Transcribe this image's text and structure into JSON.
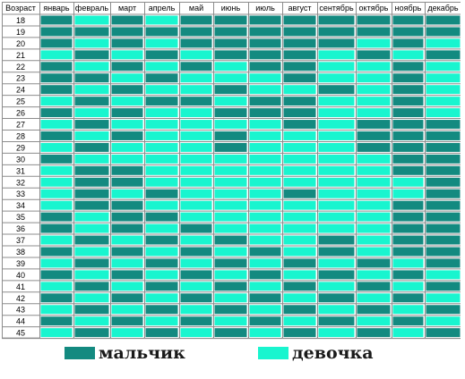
{
  "chart_data": {
    "type": "heatmap",
    "corner_label": "Возраст",
    "months": [
      "январь",
      "февраль",
      "март",
      "апрель",
      "май",
      "июнь",
      "июль",
      "август",
      "сентябрь",
      "октябрь",
      "ноябрь",
      "декабрь"
    ],
    "ages": [
      "18",
      "19",
      "20",
      "21",
      "22",
      "23",
      "24",
      "25",
      "26",
      "27",
      "28",
      "29",
      "30",
      "31",
      "32",
      "33",
      "34",
      "35",
      "36",
      "37",
      "38",
      "39",
      "40",
      "41",
      "42",
      "43",
      "44",
      "45"
    ],
    "value_meaning": {
      "1": "мальчик",
      "0": "девочка"
    },
    "values": [
      [
        1,
        0,
        1,
        0,
        1,
        1,
        1,
        1,
        1,
        1,
        1,
        1
      ],
      [
        1,
        1,
        1,
        1,
        1,
        1,
        1,
        1,
        1,
        1,
        1,
        1
      ],
      [
        1,
        0,
        1,
        0,
        1,
        1,
        1,
        1,
        1,
        0,
        1,
        0
      ],
      [
        0,
        1,
        0,
        1,
        0,
        1,
        1,
        1,
        0,
        1,
        0,
        1
      ],
      [
        1,
        0,
        1,
        0,
        1,
        0,
        1,
        1,
        0,
        0,
        1,
        0
      ],
      [
        1,
        1,
        0,
        1,
        0,
        0,
        0,
        1,
        0,
        0,
        1,
        0
      ],
      [
        1,
        0,
        1,
        0,
        0,
        1,
        0,
        0,
        1,
        0,
        1,
        0
      ],
      [
        0,
        1,
        0,
        1,
        1,
        0,
        1,
        1,
        0,
        0,
        1,
        0
      ],
      [
        1,
        0,
        1,
        0,
        0,
        1,
        1,
        1,
        0,
        0,
        1,
        0
      ],
      [
        0,
        1,
        0,
        0,
        0,
        0,
        0,
        1,
        0,
        1,
        1,
        1
      ],
      [
        1,
        0,
        1,
        0,
        0,
        1,
        0,
        0,
        0,
        1,
        1,
        1
      ],
      [
        0,
        1,
        0,
        0,
        0,
        1,
        0,
        0,
        0,
        1,
        1,
        1
      ],
      [
        1,
        0,
        0,
        0,
        0,
        0,
        0,
        0,
        0,
        0,
        1,
        1
      ],
      [
        0,
        1,
        1,
        0,
        0,
        0,
        0,
        0,
        0,
        0,
        1,
        1
      ],
      [
        0,
        1,
        1,
        0,
        0,
        0,
        0,
        0,
        0,
        0,
        0,
        1
      ],
      [
        0,
        1,
        0,
        1,
        0,
        0,
        0,
        1,
        0,
        0,
        0,
        1
      ],
      [
        0,
        1,
        1,
        0,
        0,
        0,
        0,
        0,
        0,
        0,
        1,
        1
      ],
      [
        1,
        0,
        1,
        1,
        0,
        0,
        0,
        0,
        0,
        0,
        1,
        1
      ],
      [
        1,
        0,
        1,
        0,
        1,
        0,
        0,
        0,
        0,
        0,
        1,
        1
      ],
      [
        0,
        1,
        0,
        1,
        0,
        1,
        0,
        0,
        1,
        0,
        1,
        1
      ],
      [
        1,
        0,
        1,
        0,
        1,
        0,
        1,
        0,
        1,
        0,
        1,
        1
      ],
      [
        0,
        1,
        0,
        1,
        0,
        1,
        0,
        1,
        0,
        1,
        0,
        1
      ],
      [
        1,
        0,
        1,
        0,
        1,
        0,
        1,
        0,
        1,
        0,
        1,
        0
      ],
      [
        0,
        1,
        0,
        1,
        0,
        1,
        0,
        1,
        0,
        1,
        0,
        1
      ],
      [
        1,
        0,
        1,
        0,
        1,
        0,
        1,
        0,
        1,
        0,
        1,
        0
      ],
      [
        0,
        1,
        0,
        1,
        0,
        1,
        0,
        1,
        0,
        1,
        0,
        1
      ],
      [
        1,
        0,
        1,
        0,
        1,
        0,
        1,
        0,
        1,
        0,
        1,
        0
      ],
      [
        0,
        1,
        0,
        1,
        0,
        1,
        0,
        1,
        0,
        1,
        0,
        1
      ]
    ],
    "colors": {
      "мальчик": "#138a80",
      "девочка": "#19f5cf",
      "header": "#ffffff",
      "border": "#8c8c8c"
    },
    "legend": [
      {
        "label": "мальчик",
        "color": "#138a80"
      },
      {
        "label": "девочка",
        "color": "#19f5cf"
      }
    ]
  }
}
